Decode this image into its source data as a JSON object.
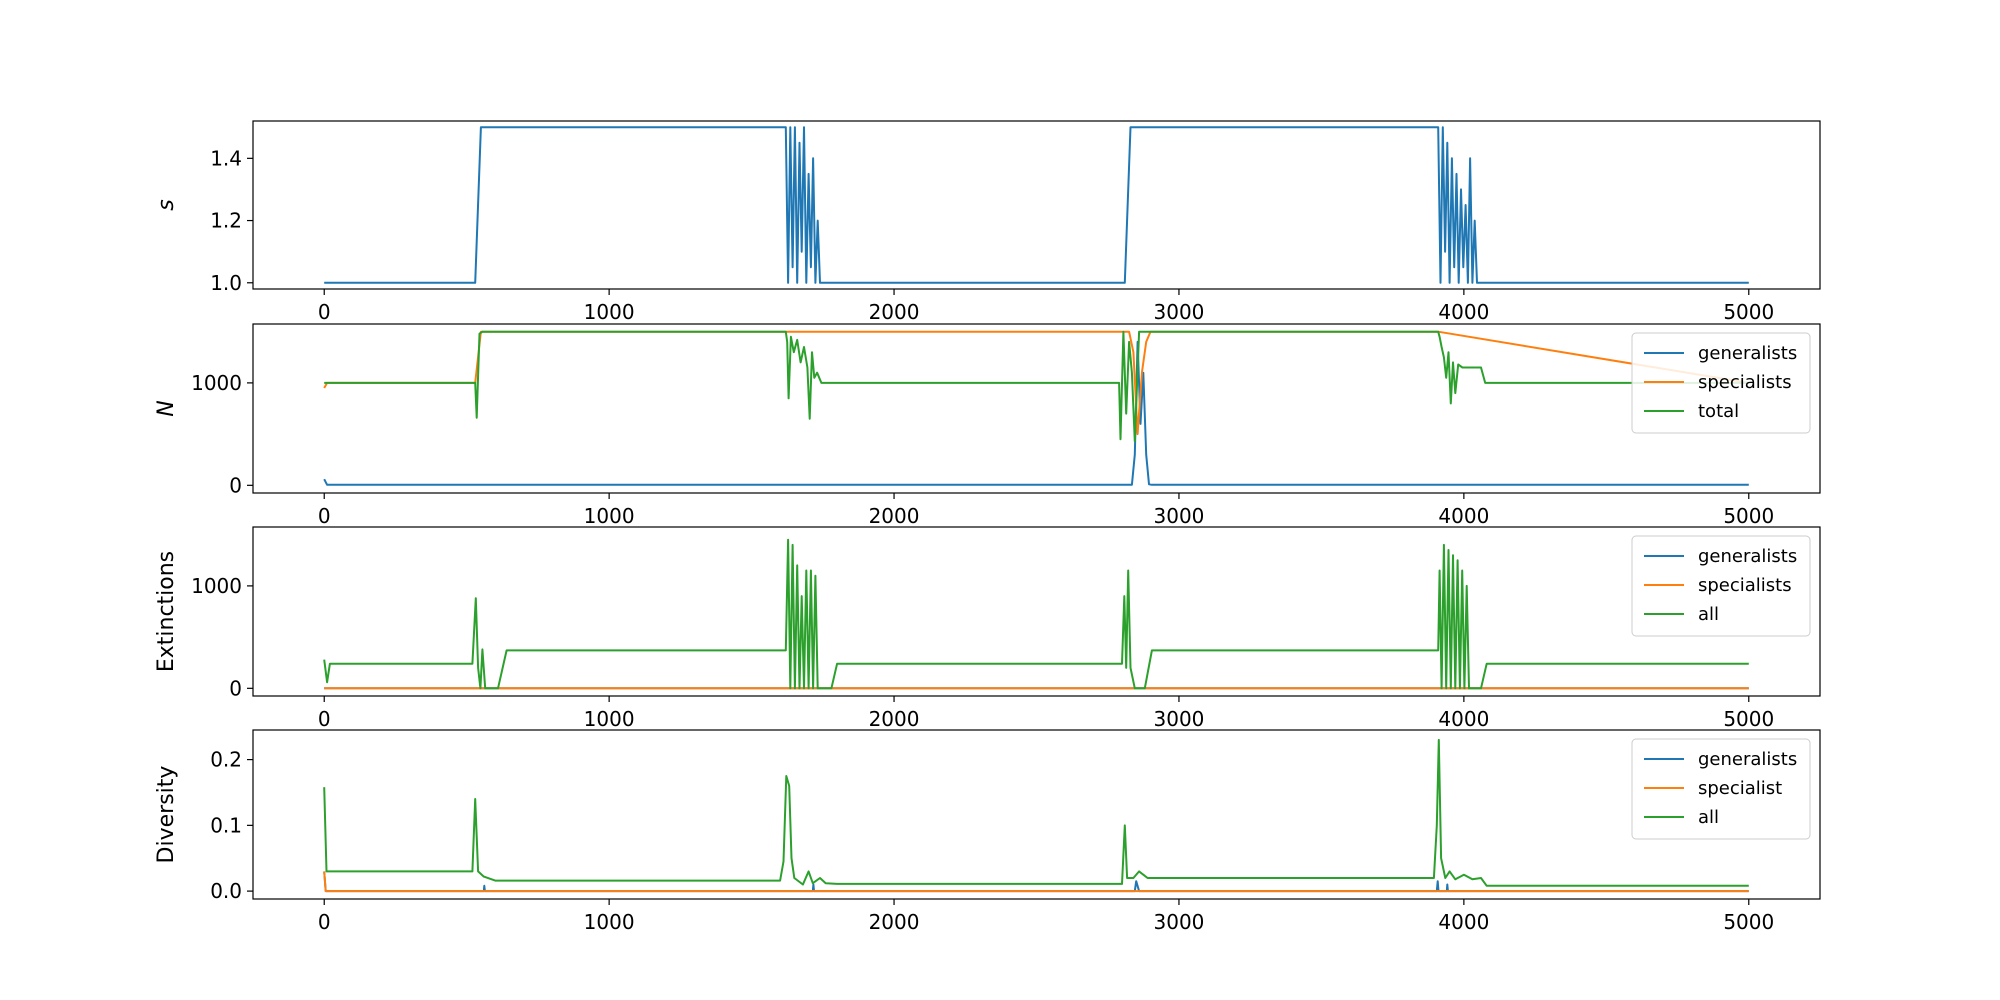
{
  "colors": {
    "generalists": "#1f77b4",
    "specialists": "#ff7f0e",
    "total": "#2ca02c"
  },
  "chart_data": [
    {
      "type": "line",
      "ylabel": "s",
      "xlim": [
        -250,
        5250
      ],
      "ylim": [
        0.98,
        1.52
      ],
      "xticks": [
        0,
        1000,
        2000,
        3000,
        4000,
        5000
      ],
      "yticks": [
        1.0,
        1.2,
        1.4
      ],
      "ytick_labels": [
        "1.0",
        "1.2",
        "1.4"
      ],
      "legend": null,
      "series": [
        {
          "color": "#1f77b4",
          "points": [
            [
              0,
              1.0
            ],
            [
              530,
              1.0
            ],
            [
              550,
              1.5
            ],
            [
              1620,
              1.5
            ],
            [
              1628,
              1.0
            ],
            [
              1636,
              1.5
            ],
            [
              1644,
              1.05
            ],
            [
              1652,
              1.5
            ],
            [
              1660,
              1.0
            ],
            [
              1668,
              1.45
            ],
            [
              1676,
              1.1
            ],
            [
              1684,
              1.5
            ],
            [
              1692,
              1.0
            ],
            [
              1700,
              1.35
            ],
            [
              1708,
              1.05
            ],
            [
              1716,
              1.4
            ],
            [
              1724,
              1.0
            ],
            [
              1732,
              1.2
            ],
            [
              1740,
              1.0
            ],
            [
              2810,
              1.0
            ],
            [
              2830,
              1.5
            ],
            [
              3910,
              1.5
            ],
            [
              3918,
              1.0
            ],
            [
              3926,
              1.5
            ],
            [
              3934,
              1.1
            ],
            [
              3942,
              1.45
            ],
            [
              3950,
              1.0
            ],
            [
              3958,
              1.4
            ],
            [
              3966,
              1.05
            ],
            [
              3974,
              1.35
            ],
            [
              3982,
              1.0
            ],
            [
              3990,
              1.3
            ],
            [
              3998,
              1.05
            ],
            [
              4006,
              1.25
            ],
            [
              4014,
              1.0
            ],
            [
              4022,
              1.4
            ],
            [
              4030,
              1.0
            ],
            [
              4038,
              1.2
            ],
            [
              4046,
              1.0
            ],
            [
              5000,
              1.0
            ]
          ]
        }
      ]
    },
    {
      "type": "line",
      "ylabel": "N",
      "xlim": [
        -250,
        5250
      ],
      "ylim": [
        -75,
        1575
      ],
      "xticks": [
        0,
        1000,
        2000,
        3000,
        4000,
        5000
      ],
      "yticks": [
        0,
        1000
      ],
      "ytick_labels": [
        "0",
        "1000"
      ],
      "legend": {
        "position": "upper right",
        "labels": [
          "generalists",
          "specialists",
          "total"
        ]
      },
      "series": [
        {
          "name": "generalists",
          "color": "#1f77b4",
          "points": [
            [
              0,
              60
            ],
            [
              10,
              5
            ],
            [
              2835,
              5
            ],
            [
              2845,
              300
            ],
            [
              2855,
              1400
            ],
            [
              2865,
              600
            ],
            [
              2875,
              1100
            ],
            [
              2885,
              300
            ],
            [
              2895,
              10
            ],
            [
              2905,
              5
            ],
            [
              5000,
              5
            ]
          ]
        },
        {
          "name": "specialists",
          "color": "#ff7f0e",
          "points": [
            [
              0,
              950
            ],
            [
              10,
              1000
            ],
            [
              530,
              1000
            ],
            [
              550,
              1500
            ],
            [
              2825,
              1500
            ],
            [
              2840,
              1300
            ],
            [
              2855,
              500
            ],
            [
              2870,
              1100
            ],
            [
              2885,
              1400
            ],
            [
              2900,
              1500
            ],
            [
              3910,
              1500
            ],
            [
              5000,
              1000
            ]
          ]
        },
        {
          "name": "total",
          "color": "#2ca02c",
          "points": [
            [
              0,
              1000
            ],
            [
              530,
              1000
            ],
            [
              535,
              660
            ],
            [
              545,
              1480
            ],
            [
              555,
              1500
            ],
            [
              1620,
              1500
            ],
            [
              1625,
              1400
            ],
            [
              1630,
              850
            ],
            [
              1638,
              1450
            ],
            [
              1648,
              1300
            ],
            [
              1660,
              1420
            ],
            [
              1672,
              1200
            ],
            [
              1684,
              1350
            ],
            [
              1696,
              1150
            ],
            [
              1704,
              650
            ],
            [
              1712,
              1300
            ],
            [
              1720,
              1050
            ],
            [
              1730,
              1100
            ],
            [
              1745,
              1000
            ],
            [
              2790,
              1000
            ],
            [
              2795,
              450
            ],
            [
              2805,
              1500
            ],
            [
              2815,
              700
            ],
            [
              2825,
              1400
            ],
            [
              2835,
              1100
            ],
            [
              2845,
              430
            ],
            [
              2860,
              1500
            ],
            [
              3910,
              1500
            ],
            [
              3915,
              1450
            ],
            [
              3922,
              1350
            ],
            [
              3930,
              1250
            ],
            [
              3938,
              1050
            ],
            [
              3946,
              1300
            ],
            [
              3954,
              800
            ],
            [
              3962,
              1200
            ],
            [
              3970,
              900
            ],
            [
              3980,
              1180
            ],
            [
              3995,
              1150
            ],
            [
              4060,
              1150
            ],
            [
              4075,
              1000
            ],
            [
              5000,
              1000
            ]
          ]
        }
      ]
    },
    {
      "type": "line",
      "ylabel": "Extinctions",
      "xlim": [
        -250,
        5250
      ],
      "ylim": [
        -75,
        1575
      ],
      "xticks": [
        0,
        1000,
        2000,
        3000,
        4000,
        5000
      ],
      "yticks": [
        0,
        1000
      ],
      "ytick_labels": [
        "0",
        "1000"
      ],
      "legend": {
        "position": "upper right",
        "labels": [
          "generalists",
          "specialists",
          "all"
        ]
      },
      "series": [
        {
          "name": "generalists",
          "color": "#1f77b4",
          "points": [
            [
              0,
              0
            ],
            [
              5000,
              0
            ]
          ]
        },
        {
          "name": "specialists",
          "color": "#ff7f0e",
          "points": [
            [
              0,
              0
            ],
            [
              5000,
              0
            ]
          ]
        },
        {
          "name": "all",
          "color": "#2ca02c",
          "points": [
            [
              0,
              280
            ],
            [
              10,
              60
            ],
            [
              20,
              240
            ],
            [
              520,
              240
            ],
            [
              532,
              880
            ],
            [
              540,
              200
            ],
            [
              548,
              0
            ],
            [
              555,
              380
            ],
            [
              565,
              0
            ],
            [
              610,
              0
            ],
            [
              640,
              370
            ],
            [
              1620,
              370
            ],
            [
              1628,
              1450
            ],
            [
              1636,
              0
            ],
            [
              1644,
              1400
            ],
            [
              1652,
              0
            ],
            [
              1660,
              1200
            ],
            [
              1668,
              0
            ],
            [
              1676,
              900
            ],
            [
              1684,
              0
            ],
            [
              1692,
              1150
            ],
            [
              1700,
              0
            ],
            [
              1708,
              1150
            ],
            [
              1716,
              0
            ],
            [
              1724,
              1100
            ],
            [
              1732,
              0
            ],
            [
              1780,
              0
            ],
            [
              1800,
              240
            ],
            [
              2800,
              240
            ],
            [
              2808,
              900
            ],
            [
              2815,
              200
            ],
            [
              2822,
              1150
            ],
            [
              2830,
              200
            ],
            [
              2845,
              0
            ],
            [
              2880,
              0
            ],
            [
              2905,
              370
            ],
            [
              3910,
              370
            ],
            [
              3915,
              1150
            ],
            [
              3922,
              0
            ],
            [
              3930,
              1400
            ],
            [
              3938,
              0
            ],
            [
              3946,
              1350
            ],
            [
              3954,
              0
            ],
            [
              3962,
              1300
            ],
            [
              3970,
              0
            ],
            [
              3978,
              1250
            ],
            [
              3986,
              0
            ],
            [
              3994,
              1150
            ],
            [
              4002,
              0
            ],
            [
              4010,
              1000
            ],
            [
              4018,
              0
            ],
            [
              4060,
              0
            ],
            [
              4080,
              240
            ],
            [
              5000,
              240
            ]
          ]
        }
      ]
    },
    {
      "type": "line",
      "ylabel": "Diversity",
      "xlim": [
        -250,
        5250
      ],
      "ylim": [
        -0.012,
        0.245
      ],
      "xticks": [
        0,
        1000,
        2000,
        3000,
        4000,
        5000
      ],
      "yticks": [
        0.0,
        0.1,
        0.2
      ],
      "ytick_labels": [
        "0.0",
        "0.1",
        "0.2"
      ],
      "legend": {
        "position": "upper right",
        "labels": [
          "generalists",
          "specialist",
          "all"
        ]
      },
      "series": [
        {
          "name": "generalists",
          "color": "#1f77b4",
          "points": [
            [
              0,
              0.03
            ],
            [
              5,
              0.0
            ],
            [
              560,
              0.0
            ],
            [
              562,
              0.008
            ],
            [
              564,
              0.0
            ],
            [
              1715,
              0.0
            ],
            [
              1717,
              0.01
            ],
            [
              1719,
              0.0
            ],
            [
              2845,
              0.0
            ],
            [
              2850,
              0.015
            ],
            [
              2860,
              0.0
            ],
            [
              3905,
              0.0
            ],
            [
              3908,
              0.015
            ],
            [
              3911,
              0.0
            ],
            [
              3940,
              0.0
            ],
            [
              3942,
              0.01
            ],
            [
              3944,
              0.0
            ],
            [
              5000,
              0.0
            ]
          ]
        },
        {
          "name": "specialist",
          "color": "#ff7f0e",
          "points": [
            [
              0,
              0.03
            ],
            [
              5,
              0.0
            ],
            [
              5000,
              0.0
            ]
          ]
        },
        {
          "name": "all",
          "color": "#2ca02c",
          "points": [
            [
              0,
              0.158
            ],
            [
              8,
              0.03
            ],
            [
              520,
              0.03
            ],
            [
              530,
              0.14
            ],
            [
              540,
              0.03
            ],
            [
              560,
              0.022
            ],
            [
              600,
              0.016
            ],
            [
              1600,
              0.016
            ],
            [
              1612,
              0.045
            ],
            [
              1622,
              0.175
            ],
            [
              1632,
              0.16
            ],
            [
              1640,
              0.05
            ],
            [
              1650,
              0.02
            ],
            [
              1680,
              0.01
            ],
            [
              1700,
              0.03
            ],
            [
              1715,
              0.012
            ],
            [
              1740,
              0.02
            ],
            [
              1760,
              0.012
            ],
            [
              1800,
              0.011
            ],
            [
              2800,
              0.011
            ],
            [
              2810,
              0.1
            ],
            [
              2818,
              0.02
            ],
            [
              2840,
              0.02
            ],
            [
              2860,
              0.03
            ],
            [
              2890,
              0.02
            ],
            [
              3895,
              0.02
            ],
            [
              3905,
              0.1
            ],
            [
              3912,
              0.23
            ],
            [
              3920,
              0.05
            ],
            [
              3935,
              0.02
            ],
            [
              3950,
              0.03
            ],
            [
              3970,
              0.018
            ],
            [
              4000,
              0.025
            ],
            [
              4030,
              0.018
            ],
            [
              4060,
              0.02
            ],
            [
              4080,
              0.008
            ],
            [
              5000,
              0.008
            ]
          ]
        }
      ]
    }
  ]
}
